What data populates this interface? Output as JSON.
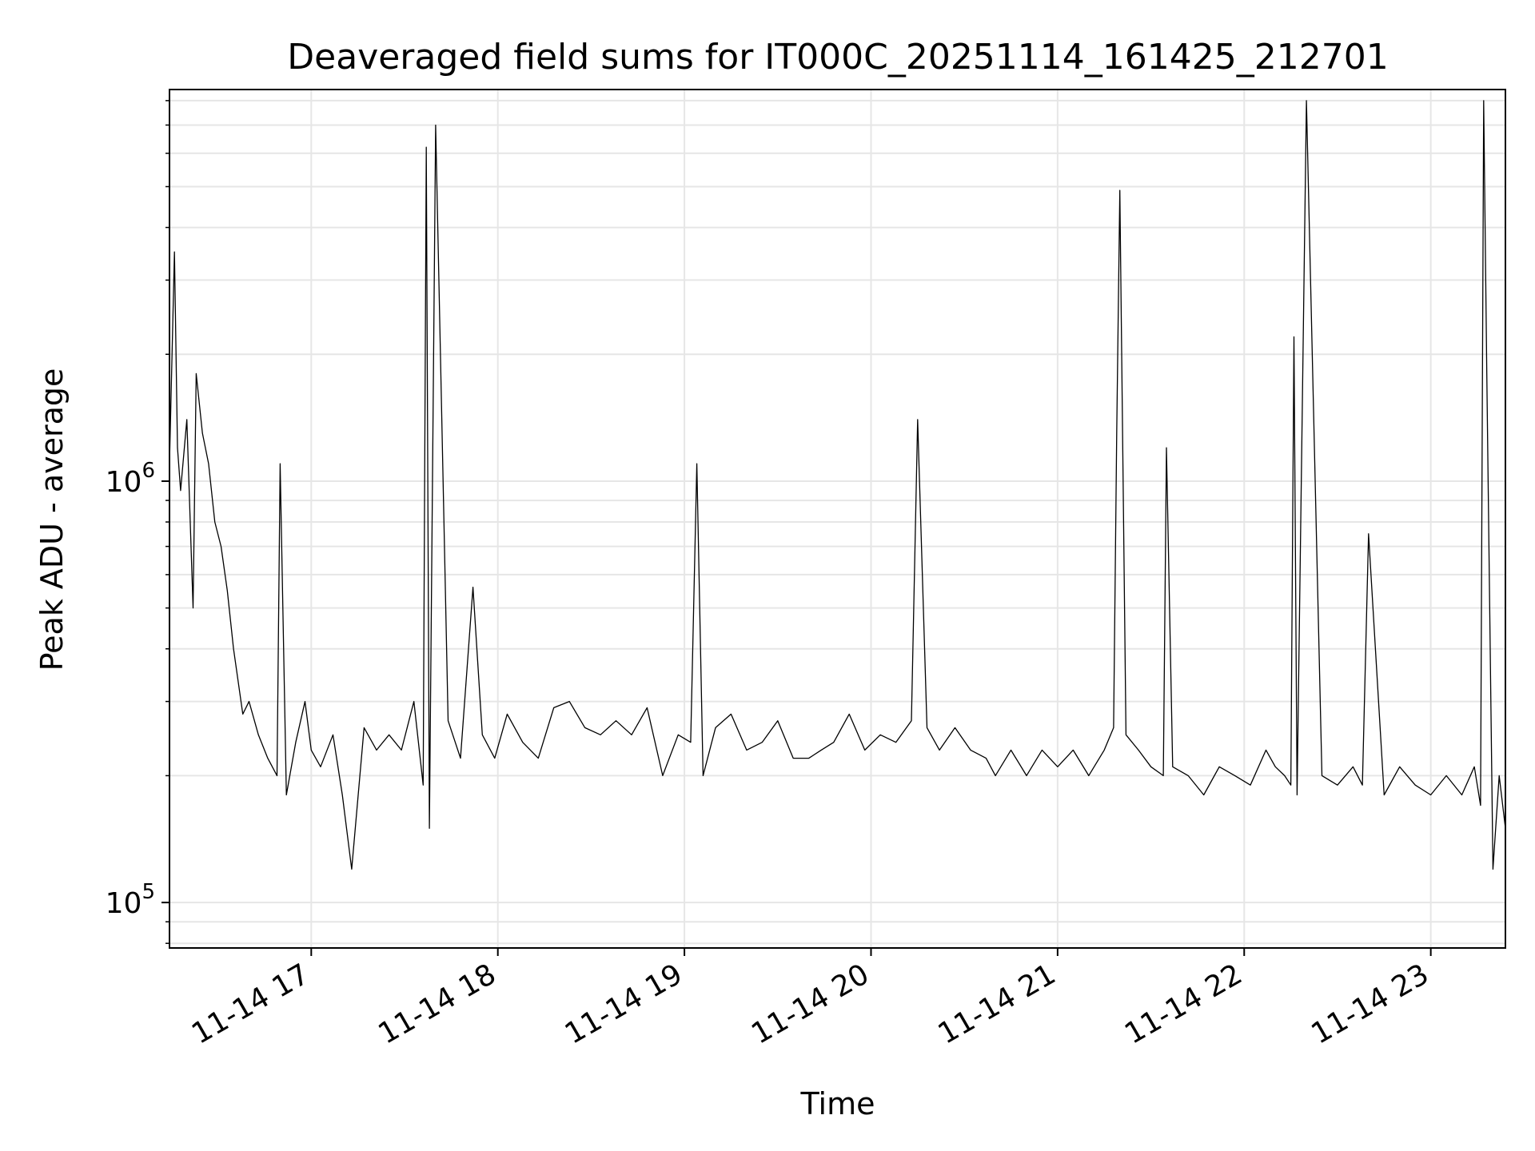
{
  "chart_data": {
    "type": "line",
    "title": "Deaveraged field sums for IT000C_20251114_161425_212701",
    "xlabel": "Time",
    "ylabel": "Peak ADU - average",
    "y_scale": "log",
    "ylim": [
      78000,
      8500000
    ],
    "xlim": [
      "2025-11-14T16:14:25",
      "2025-11-14T23:24:00"
    ],
    "x_ticks": [
      {
        "label": "11-14 17",
        "value": "2025-11-14T17:00:00"
      },
      {
        "label": "11-14 18",
        "value": "2025-11-14T18:00:00"
      },
      {
        "label": "11-14 19",
        "value": "2025-11-14T19:00:00"
      },
      {
        "label": "11-14 20",
        "value": "2025-11-14T20:00:00"
      },
      {
        "label": "11-14 21",
        "value": "2025-11-14T21:00:00"
      },
      {
        "label": "11-14 22",
        "value": "2025-11-14T22:00:00"
      },
      {
        "label": "11-14 23",
        "value": "2025-11-14T23:00:00"
      }
    ],
    "y_ticks": [
      {
        "base": "10",
        "exp": "5",
        "value": 100000
      },
      {
        "base": "10",
        "exp": "6",
        "value": 1000000
      }
    ],
    "grid": true,
    "line_color": "#000000",
    "grid_color": "#e6e6e6",
    "series": [
      {
        "x": [
          "2025-11-14T16:14:25",
          "2025-11-14T16:16:00",
          "2025-11-14T16:17:00",
          "2025-11-14T16:18:00",
          "2025-11-14T16:20:00",
          "2025-11-14T16:22:00",
          "2025-11-14T16:23:00",
          "2025-11-14T16:25:00",
          "2025-11-14T16:27:00",
          "2025-11-14T16:29:00",
          "2025-11-14T16:31:00",
          "2025-11-14T16:33:00",
          "2025-11-14T16:35:00",
          "2025-11-14T16:38:00",
          "2025-11-14T16:40:00",
          "2025-11-14T16:43:00",
          "2025-11-14T16:46:00",
          "2025-11-14T16:49:00",
          "2025-11-14T16:50:00",
          "2025-11-14T16:52:00",
          "2025-11-14T16:55:00",
          "2025-11-14T16:58:00",
          "2025-11-14T17:00:00",
          "2025-11-14T17:03:00",
          "2025-11-14T17:07:00",
          "2025-11-14T17:10:00",
          "2025-11-14T17:13:00",
          "2025-11-14T17:17:00",
          "2025-11-14T17:21:00",
          "2025-11-14T17:25:00",
          "2025-11-14T17:29:00",
          "2025-11-14T17:33:00",
          "2025-11-14T17:36:00",
          "2025-11-14T17:37:00",
          "2025-11-14T17:38:00",
          "2025-11-14T17:40:00",
          "2025-11-14T17:44:00",
          "2025-11-14T17:48:00",
          "2025-11-14T17:52:00",
          "2025-11-14T17:55:00",
          "2025-11-14T17:59:00",
          "2025-11-14T18:03:00",
          "2025-11-14T18:08:00",
          "2025-11-14T18:13:00",
          "2025-11-14T18:18:00",
          "2025-11-14T18:23:00",
          "2025-11-14T18:28:00",
          "2025-11-14T18:33:00",
          "2025-11-14T18:38:00",
          "2025-11-14T18:43:00",
          "2025-11-14T18:48:00",
          "2025-11-14T18:53:00",
          "2025-11-14T18:58:00",
          "2025-11-14T19:02:00",
          "2025-11-14T19:04:00",
          "2025-11-14T19:06:00",
          "2025-11-14T19:10:00",
          "2025-11-14T19:15:00",
          "2025-11-14T19:20:00",
          "2025-11-14T19:25:00",
          "2025-11-14T19:30:00",
          "2025-11-14T19:35:00",
          "2025-11-14T19:40:00",
          "2025-11-14T19:44:00",
          "2025-11-14T19:48:00",
          "2025-11-14T19:53:00",
          "2025-11-14T19:58:00",
          "2025-11-14T20:03:00",
          "2025-11-14T20:08:00",
          "2025-11-14T20:13:00",
          "2025-11-14T20:15:00",
          "2025-11-14T20:18:00",
          "2025-11-14T20:22:00",
          "2025-11-14T20:27:00",
          "2025-11-14T20:32:00",
          "2025-11-14T20:37:00",
          "2025-11-14T20:40:00",
          "2025-11-14T20:45:00",
          "2025-11-14T20:50:00",
          "2025-11-14T20:55:00",
          "2025-11-14T21:00:00",
          "2025-11-14T21:05:00",
          "2025-11-14T21:10:00",
          "2025-11-14T21:15:00",
          "2025-11-14T21:18:00",
          "2025-11-14T21:19:00",
          "2025-11-14T21:20:00",
          "2025-11-14T21:22:00",
          "2025-11-14T21:26:00",
          "2025-11-14T21:30:00",
          "2025-11-14T21:34:00",
          "2025-11-14T21:35:00",
          "2025-11-14T21:37:00",
          "2025-11-14T21:42:00",
          "2025-11-14T21:47:00",
          "2025-11-14T21:52:00",
          "2025-11-14T21:57:00",
          "2025-11-14T22:02:00",
          "2025-11-14T22:07:00",
          "2025-11-14T22:10:00",
          "2025-11-14T22:13:00",
          "2025-11-14T22:15:00",
          "2025-11-14T22:16:00",
          "2025-11-14T22:17:00",
          "2025-11-14T22:20:00",
          "2025-11-14T22:25:00",
          "2025-11-14T22:30:00",
          "2025-11-14T22:35:00",
          "2025-11-14T22:38:00",
          "2025-11-14T22:40:00",
          "2025-11-14T22:45:00",
          "2025-11-14T22:50:00",
          "2025-11-14T22:55:00",
          "2025-11-14T23:00:00",
          "2025-11-14T23:05:00",
          "2025-11-14T23:10:00",
          "2025-11-14T23:14:00",
          "2025-11-14T23:16:00",
          "2025-11-14T23:17:00",
          "2025-11-14T23:18:00",
          "2025-11-14T23:20:00",
          "2025-11-14T23:22:00",
          "2025-11-14T23:24:00"
        ],
        "y": [
          1100000,
          3500000,
          1200000,
          950000,
          1400000,
          500000,
          1800000,
          1300000,
          1100000,
          800000,
          700000,
          550000,
          400000,
          280000,
          300000,
          250000,
          220000,
          200000,
          1100000,
          180000,
          240000,
          300000,
          230000,
          210000,
          250000,
          180000,
          120000,
          260000,
          230000,
          250000,
          230000,
          300000,
          190000,
          6200000,
          150000,
          7000000,
          270000,
          220000,
          560000,
          250000,
          220000,
          280000,
          240000,
          220000,
          290000,
          300000,
          260000,
          250000,
          270000,
          250000,
          290000,
          200000,
          250000,
          240000,
          1100000,
          200000,
          260000,
          280000,
          230000,
          240000,
          270000,
          220000,
          220000,
          230000,
          240000,
          280000,
          230000,
          250000,
          240000,
          270000,
          1400000,
          260000,
          230000,
          260000,
          230000,
          220000,
          200000,
          230000,
          200000,
          230000,
          210000,
          230000,
          200000,
          230000,
          260000,
          1300000,
          4900000,
          250000,
          230000,
          210000,
          200000,
          1200000,
          210000,
          200000,
          180000,
          210000,
          200000,
          190000,
          230000,
          210000,
          200000,
          190000,
          2200000,
          180000,
          8000000,
          200000,
          190000,
          210000,
          190000,
          750000,
          180000,
          210000,
          190000,
          180000,
          200000,
          180000,
          210000,
          170000,
          8000000,
          1800000,
          120000,
          200000,
          150000
        ]
      }
    ]
  }
}
